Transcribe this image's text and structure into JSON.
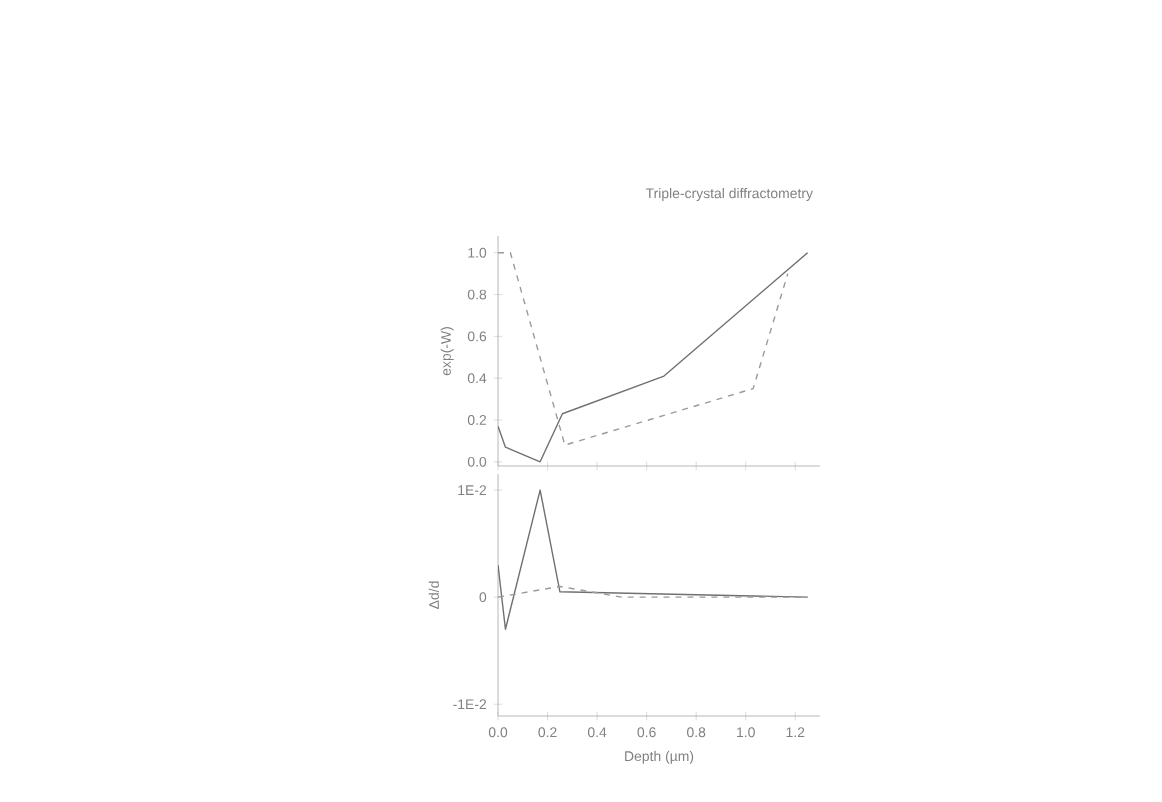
{
  "chart_data": [
    {
      "type": "line",
      "title": "Triple-crystal diffractometry",
      "ylabel": "exp(-W)",
      "xlim": [
        0,
        1.3
      ],
      "ylim": [
        -0.02,
        1.08
      ],
      "xticks": [
        0,
        0.2,
        0.4,
        0.6,
        0.8,
        1.0,
        1.2
      ],
      "yticks": [
        {
          "value": 0,
          "label": "0.0"
        },
        0.2,
        0.4,
        0.6,
        0.8,
        {
          "value": 1.0,
          "label": "1.0"
        }
      ],
      "tick_labels": "y",
      "series": [
        {
          "color": "#707070",
          "line_style": "solid",
          "x": [
            0,
            0.03,
            0.17,
            0.26,
            0.67,
            1.25
          ],
          "values": [
            0.17,
            0.07,
            0.0,
            0.23,
            0.41,
            1.0
          ]
        },
        {
          "color": "#9a9a9a",
          "line_style": "dashed",
          "x": [
            0,
            0.05,
            0.27,
            1.03,
            1.17
          ],
          "values": [
            1.0,
            1.0,
            0.08,
            0.35,
            0.9
          ]
        }
      ]
    },
    {
      "type": "line",
      "xlabel": "Depth (µm)",
      "ylabel": "Δd/d",
      "xlim": [
        0,
        1.3
      ],
      "ylim": [
        -0.0111,
        0.0115
      ],
      "xticks": [
        {
          "value": 0,
          "label": "0.0"
        },
        0.2,
        0.4,
        0.6,
        0.8,
        {
          "value": 1.0,
          "label": "1.0"
        },
        1.2
      ],
      "yticks": [
        {
          "value": -0.01,
          "label": "-1E-2"
        },
        0,
        {
          "value": 0.01,
          "label": "1E-2"
        }
      ],
      "series": [
        {
          "color": "#707070",
          "line_style": "solid",
          "x": [
            0,
            0.03,
            0.17,
            0.25,
            1.25
          ],
          "values": [
            0.003,
            -0.003,
            0.01,
            0.0005,
            0.0
          ]
        },
        {
          "color": "#9a9a9a",
          "line_style": "dashed",
          "x": [
            0,
            0.25,
            0.5,
            1.25
          ],
          "values": [
            0.0,
            0.001,
            0.0,
            0.0
          ]
        }
      ]
    }
  ]
}
